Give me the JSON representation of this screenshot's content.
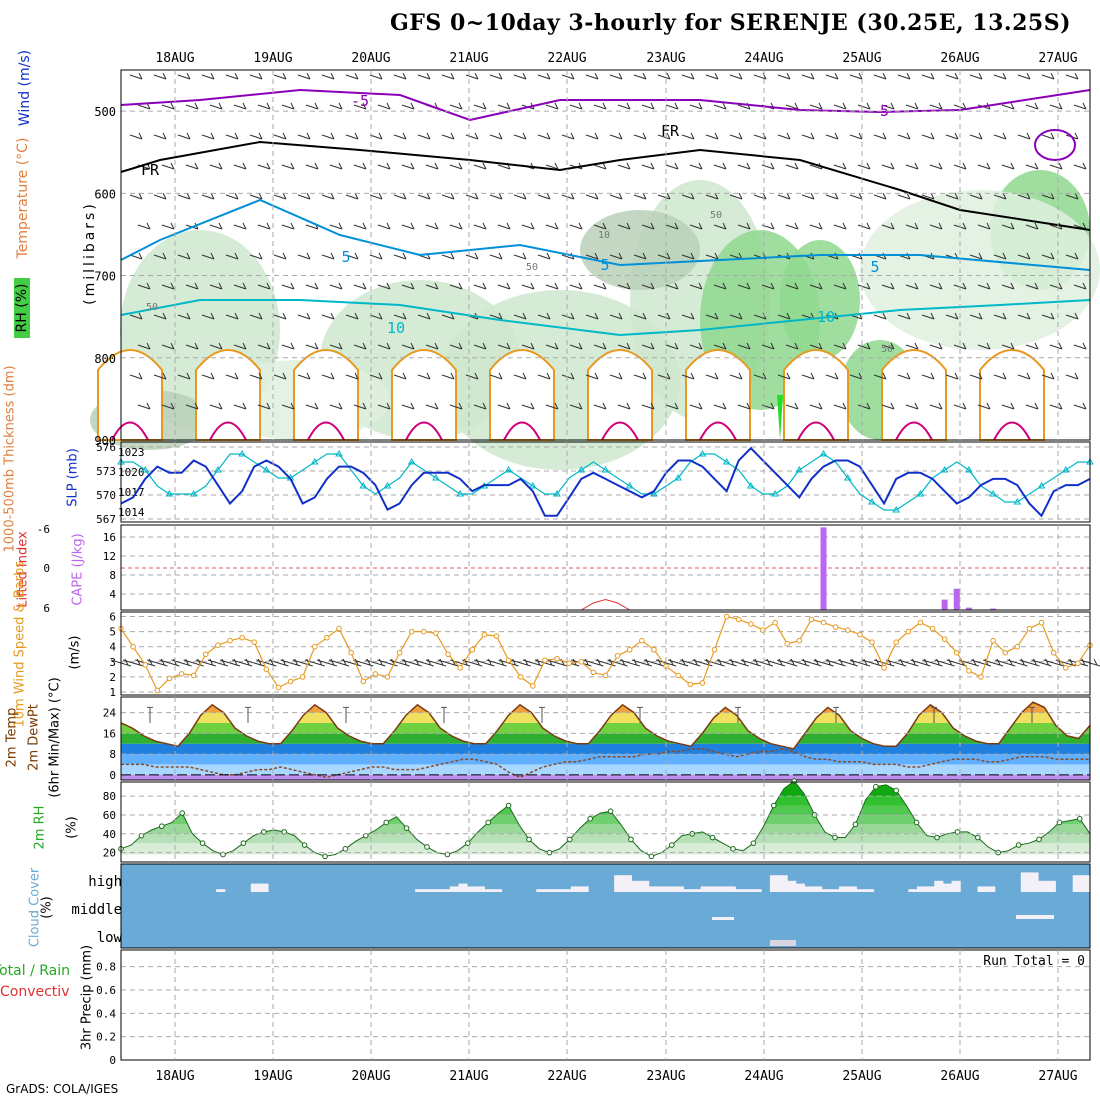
{
  "title": "GFS 0~10day 3-hourly for SERENJE (30.25E, 13.25S)",
  "credit": "GrADS: COLA/IGES",
  "dates": [
    "18AUG",
    "19AUG",
    "20AUG",
    "21AUG",
    "22AUG",
    "23AUG",
    "24AUG",
    "25AUG",
    "26AUG",
    "27AUG"
  ],
  "colors": {
    "grid": "#aaaaaa",
    "purple": "#8a00b8",
    "cyan": "#0090d8",
    "teal": "#00b8c8",
    "orange": "#e89a20",
    "magenta": "#d0007a",
    "blue": "#1030c8",
    "green": "#44cc44",
    "cape": "#bb66ee",
    "cloud": "#6aaad6"
  },
  "panels": {
    "upper": {
      "labels": [
        "Wind (m/s)",
        "Temperature (°C)",
        "RH (%)",
        "(millibars)"
      ],
      "yticks": [
        "500",
        "600",
        "700",
        "800",
        "900"
      ],
      "contour_labels": [
        "-5",
        "-5",
        "FR",
        "FR",
        "5",
        "5",
        "5",
        "10",
        "10",
        "50",
        "50",
        "50",
        "50",
        "10"
      ]
    },
    "slp": {
      "labels": [
        "1000-500mb Thickness (dm)",
        "SLP (mb)"
      ],
      "left_ticks": [
        "576",
        "573",
        "570",
        "567"
      ],
      "right_ticks": [
        "1023",
        "1020",
        "1017",
        "1014"
      ]
    },
    "cape": {
      "labels": [
        "Lifted Index",
        "CAPE (J/kg)"
      ],
      "left_ticks": [
        "-6",
        "0",
        "6"
      ],
      "right_ticks": [
        "16",
        "12",
        "8",
        "4"
      ]
    },
    "wind10": {
      "labels": [
        "10m Wind Speed & Barbs",
        "(m/s)"
      ],
      "yticks": [
        "6",
        "5",
        "4",
        "3",
        "2",
        "1"
      ]
    },
    "temp": {
      "labels": [
        "2m Temp",
        "2m DewPt",
        "(6hr Min/Max) (°C)"
      ],
      "yticks": [
        "24",
        "16",
        "8",
        "0"
      ]
    },
    "rh": {
      "labels": [
        "2m RH",
        "(%)"
      ],
      "yticks": [
        "80",
        "60",
        "40",
        "20"
      ]
    },
    "cloud": {
      "labels": [
        "Cloud Cover",
        "(%)"
      ],
      "levels": [
        "high",
        "middle",
        "low"
      ]
    },
    "precip": {
      "labels": [
        "Total / Rain",
        "Convective",
        "3hr Precip (mm)"
      ],
      "yticks": [
        "0.8",
        "0.6",
        "0.4",
        "0.2",
        "0"
      ],
      "run_total": "Run Total = 0"
    }
  },
  "chart_data": [
    {
      "type": "line",
      "name": "slp",
      "title": "SLP (mb)",
      "ylim": [
        1012,
        1025
      ],
      "series": [
        {
          "name": "SLP (mb)",
          "values": [
            1015,
            1016,
            1019,
            1021,
            1020,
            1020,
            1022,
            1021,
            1018,
            1015,
            1017,
            1021,
            1022,
            1021,
            1019,
            1015,
            1016,
            1019,
            1021,
            1021,
            1020,
            1018,
            1014,
            1015,
            1018,
            1020,
            1020,
            1020,
            1019,
            1017,
            1018,
            1018,
            1018,
            1019,
            1017,
            1013,
            1013,
            1016,
            1019,
            1020,
            1019,
            1018,
            1017,
            1016,
            1017,
            1020,
            1022,
            1022,
            1021,
            1019,
            1017,
            1022,
            1024,
            1022,
            1020,
            1018,
            1016,
            1019,
            1021,
            1022,
            1022,
            1021,
            1018,
            1015,
            1019,
            1020,
            1020,
            1019,
            1017,
            1015,
            1016,
            1018,
            1019,
            1019,
            1018,
            1015,
            1013,
            1017,
            1018,
            1018,
            1019
          ]
        }
      ]
    },
    {
      "type": "line",
      "name": "thickness",
      "title": "1000-500mb Thickness (dm)",
      "ylim": [
        566.5,
        576.5
      ],
      "series": [
        {
          "name": "1000-500mb Thickness (dm)",
          "values": [
            574,
            574,
            573,
            571,
            570,
            570,
            570,
            571,
            573,
            575,
            575,
            574,
            573,
            572,
            572,
            573,
            574,
            575,
            575,
            573,
            571,
            570,
            571,
            572,
            574,
            573,
            572,
            571,
            570,
            570,
            571,
            572,
            573,
            572,
            571,
            570,
            570,
            572,
            573,
            574,
            573,
            572,
            571,
            570,
            570,
            571,
            572,
            574,
            575,
            575,
            574,
            573,
            571,
            570,
            570,
            571,
            573,
            574,
            575,
            574,
            572,
            570,
            569,
            568,
            568,
            569,
            570,
            572,
            573,
            574,
            573,
            571,
            570,
            569,
            569,
            570,
            571,
            572,
            573,
            574,
            574
          ]
        }
      ]
    },
    {
      "type": "bar",
      "name": "cape",
      "title": "CAPE (J/kg)",
      "ylim": [
        0,
        18
      ],
      "x": [
        58,
        68,
        69,
        70,
        72,
        87
      ],
      "values": [
        17.5,
        2.2,
        4.5,
        0.5,
        0.3,
        2.2
      ]
    },
    {
      "type": "line",
      "name": "lifted_index",
      "title": "Lifted Index",
      "ylim": [
        6,
        -7
      ],
      "x": [
        38,
        39,
        40,
        41,
        42
      ],
      "values": [
        6,
        5,
        4.5,
        5,
        6
      ]
    },
    {
      "type": "line",
      "name": "wind10m",
      "title": "10m Wind Speed",
      "ylim": [
        0.8,
        6.3
      ],
      "values": [
        5.2,
        4.0,
        2.8,
        1.1,
        1.9,
        2.2,
        2.1,
        3.5,
        4.1,
        4.4,
        4.6,
        4.3,
        2.5,
        1.3,
        1.7,
        2.0,
        4.0,
        4.6,
        5.2,
        3.6,
        1.7,
        2.2,
        2.0,
        3.6,
        5.0,
        5.0,
        4.9,
        3.5,
        2.6,
        3.8,
        4.8,
        4.7,
        3.1,
        2.0,
        1.4,
        3.1,
        3.2,
        2.9,
        3.0,
        2.3,
        2.1,
        3.4,
        3.8,
        4.4,
        3.8,
        2.7,
        2.1,
        1.5,
        1.6,
        3.8,
        6.0,
        5.8,
        5.5,
        5.1,
        5.6,
        4.2,
        4.4,
        5.8,
        5.6,
        5.3,
        5.1,
        4.8,
        4.3,
        2.6,
        4.3,
        5.0,
        5.6,
        5.2,
        4.5,
        3.6,
        2.4,
        2.0,
        4.4,
        3.6,
        4.0,
        5.2,
        5.6,
        3.6,
        2.6,
        2.9,
        4.1
      ]
    },
    {
      "type": "area",
      "name": "temp2m",
      "title": "2m Temp",
      "ylim": [
        -2,
        30
      ],
      "series": [
        {
          "name": "2m Temp",
          "values": [
            20,
            18,
            15,
            13,
            12,
            11,
            16,
            23,
            27,
            24,
            18,
            15,
            13,
            12,
            12,
            17,
            23,
            27,
            24,
            18,
            15,
            13,
            12,
            12,
            17,
            23,
            27,
            24,
            18,
            15,
            13,
            12,
            12,
            17,
            23,
            27,
            24,
            18,
            15,
            13,
            12,
            12,
            17,
            23,
            27,
            24,
            18,
            15,
            13,
            12,
            11,
            16,
            22,
            26,
            23,
            17,
            14,
            12,
            11,
            10,
            16,
            22,
            26,
            23,
            17,
            14,
            12,
            11,
            11,
            16,
            23,
            27,
            24,
            18,
            15,
            13,
            12,
            12,
            18,
            24,
            28,
            26,
            19,
            15,
            14,
            19
          ]
        },
        {
          "name": "2m DewPt",
          "values": [
            4,
            4,
            4,
            3,
            3,
            3,
            3,
            2,
            1,
            0,
            0,
            1,
            2,
            2,
            3,
            2,
            1,
            0,
            -1,
            0,
            1,
            2,
            3,
            3,
            2,
            2,
            2,
            3,
            4,
            5,
            6,
            6,
            5,
            4,
            1,
            -1,
            1,
            3,
            4,
            5,
            5,
            6,
            7,
            7,
            7,
            7,
            8,
            8,
            9,
            9,
            10,
            10,
            9,
            8,
            7,
            8,
            9,
            9,
            10,
            9,
            7,
            6,
            6,
            5,
            5,
            5,
            4,
            4,
            4,
            3,
            3,
            4,
            5,
            6,
            6,
            6,
            5,
            5,
            6,
            7,
            7,
            7,
            6,
            6,
            6,
            6
          ]
        }
      ]
    },
    {
      "type": "area",
      "name": "rh2m",
      "title": "2m RH",
      "ylim": [
        10,
        95
      ],
      "values": [
        24,
        28,
        38,
        44,
        48,
        52,
        62,
        40,
        30,
        22,
        18,
        22,
        30,
        38,
        42,
        44,
        42,
        38,
        28,
        20,
        16,
        18,
        24,
        32,
        38,
        44,
        52,
        58,
        46,
        34,
        26,
        20,
        18,
        22,
        30,
        42,
        52,
        62,
        70,
        50,
        34,
        24,
        20,
        24,
        34,
        46,
        56,
        62,
        64,
        50,
        34,
        22,
        16,
        20,
        28,
        38,
        40,
        42,
        36,
        30,
        24,
        22,
        30,
        48,
        70,
        88,
        96,
        82,
        60,
        42,
        36,
        36,
        50,
        76,
        90,
        92,
        86,
        70,
        52,
        38,
        36,
        40,
        42,
        42,
        36,
        26,
        20,
        22,
        28,
        30,
        34,
        42,
        52,
        54,
        56,
        40
      ]
    },
    {
      "type": "bar",
      "name": "cloud_high",
      "title": "Cloud Cover high (%)",
      "ylim": [
        0,
        100
      ],
      "values": [
        0,
        0,
        0,
        0,
        0,
        0,
        0,
        0,
        0,
        0,
        0,
        10,
        0,
        0,
        0,
        30,
        30,
        0,
        0,
        0,
        0,
        0,
        0,
        0,
        0,
        0,
        0,
        0,
        0,
        0,
        0,
        0,
        0,
        0,
        10,
        10,
        10,
        10,
        20,
        30,
        20,
        20,
        10,
        10,
        0,
        0,
        0,
        0,
        10,
        10,
        10,
        10,
        20,
        20,
        0,
        0,
        0,
        60,
        60,
        40,
        40,
        20,
        20,
        20,
        20,
        10,
        10,
        20,
        20,
        20,
        20,
        10,
        10,
        10,
        0,
        60,
        60,
        40,
        30,
        20,
        20,
        10,
        10,
        20,
        20,
        10,
        10,
        0,
        0,
        0,
        0,
        10,
        20,
        20,
        40,
        30,
        40,
        0,
        0,
        20,
        20,
        0,
        0,
        0,
        70,
        70,
        40,
        40,
        0,
        0,
        60,
        60
      ]
    },
    {
      "type": "bar",
      "name": "precip",
      "title": "3hr Precip (mm)",
      "ylim": [
        0,
        0.9
      ],
      "values": []
    }
  ]
}
